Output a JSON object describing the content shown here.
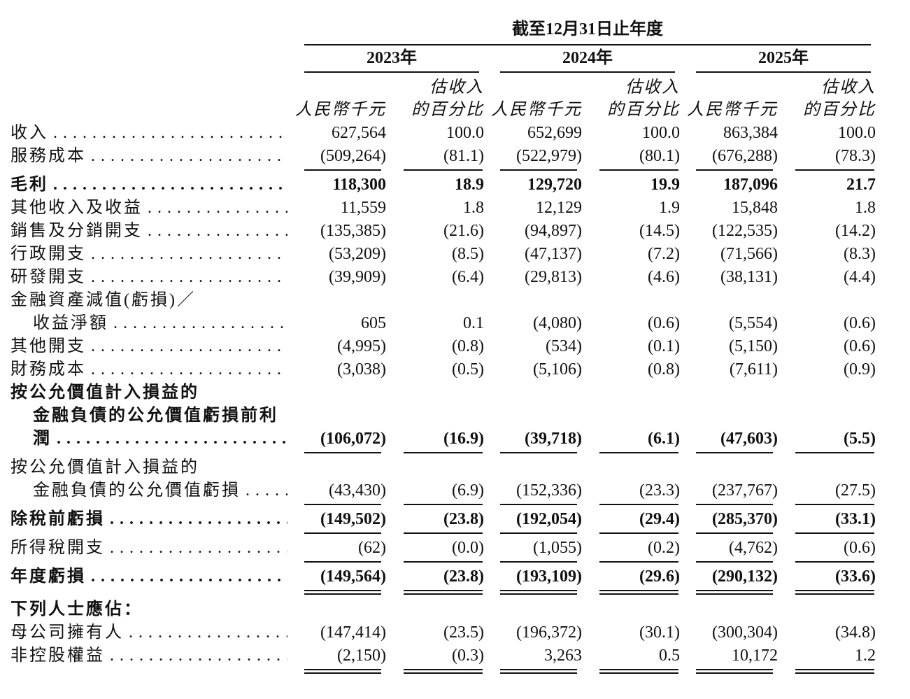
{
  "table": {
    "period_header": "截至12月31日止年度",
    "years": [
      "2023年",
      "2024年",
      "2025年"
    ],
    "column_headers": [
      [
        "人民幣千元"
      ],
      [
        "估收入",
        "的百分比"
      ],
      [
        "人民幣千元"
      ],
      [
        "估收入",
        "的百分比"
      ],
      [
        "人民幣千元"
      ],
      [
        "估收入",
        "的百分比"
      ]
    ],
    "rows": [
      {
        "label": [
          "收入"
        ],
        "values": [
          "627,564",
          "100.0",
          "652,699",
          "100.0",
          "863,384",
          "100.0"
        ]
      },
      {
        "label": [
          "服務成本"
        ],
        "values": [
          "(509,264)",
          "(81.1)",
          "(522,979)",
          "(80.1)",
          "(676,288)",
          "(78.3)"
        ],
        "rule_below": "single"
      },
      {
        "label": [
          "毛利"
        ],
        "bold": true,
        "values": [
          "118,300",
          "18.9",
          "129,720",
          "19.9",
          "187,096",
          "21.7"
        ]
      },
      {
        "label": [
          "其他收入及收益"
        ],
        "values": [
          "11,559",
          "1.8",
          "12,129",
          "1.9",
          "15,848",
          "1.8"
        ]
      },
      {
        "label": [
          "銷售及分銷開支"
        ],
        "values": [
          "(135,385)",
          "(21.6)",
          "(94,897)",
          "(14.5)",
          "(122,535)",
          "(14.2)"
        ]
      },
      {
        "label": [
          "行政開支"
        ],
        "values": [
          "(53,209)",
          "(8.5)",
          "(47,137)",
          "(7.2)",
          "(71,566)",
          "(8.3)"
        ]
      },
      {
        "label": [
          "研發開支"
        ],
        "values": [
          "(39,909)",
          "(6.4)",
          "(29,813)",
          "(4.6)",
          "(38,131)",
          "(4.4)"
        ]
      },
      {
        "label": [
          "金融資產減值(虧損)／",
          "收益淨額"
        ],
        "values": [
          "605",
          "0.1",
          "(4,080)",
          "(0.6)",
          "(5,554)",
          "(0.6)"
        ]
      },
      {
        "label": [
          "其他開支"
        ],
        "values": [
          "(4,995)",
          "(0.8)",
          "(534)",
          "(0.1)",
          "(5,150)",
          "(0.6)"
        ]
      },
      {
        "label": [
          "財務成本"
        ],
        "values": [
          "(3,038)",
          "(0.5)",
          "(5,106)",
          "(0.8)",
          "(7,611)",
          "(0.9)"
        ]
      },
      {
        "label": [
          "按公允價值計入損益的",
          "金融負債的公允價值虧損前利",
          "潤"
        ],
        "bold": true,
        "values": [
          "(106,072)",
          "(16.9)",
          "(39,718)",
          "(6.1)",
          "(47,603)",
          "(5.5)"
        ],
        "rule_below": "single"
      },
      {
        "label": [
          "按公允價值計入損益的",
          "金融負債的公允價值虧損"
        ],
        "values": [
          "(43,430)",
          "(6.9)",
          "(152,336)",
          "(23.3)",
          "(237,767)",
          "(27.5)"
        ],
        "rule_below": "single"
      },
      {
        "label": [
          "除稅前虧損"
        ],
        "bold": true,
        "values": [
          "(149,502)",
          "(23.8)",
          "(192,054)",
          "(29.4)",
          "(285,370)",
          "(33.1)"
        ],
        "rule_below": "single"
      },
      {
        "label": [
          "所得稅開支"
        ],
        "values": [
          "(62)",
          "(0.0)",
          "(1,055)",
          "(0.2)",
          "(4,762)",
          "(0.6)"
        ],
        "rule_below": "single"
      },
      {
        "label": [
          "年度虧損"
        ],
        "bold": true,
        "values": [
          "(149,564)",
          "(23.8)",
          "(193,109)",
          "(29.6)",
          "(290,132)",
          "(33.6)"
        ],
        "rule_below": "double"
      },
      {
        "label": [
          "下列人士應佔："
        ],
        "bold": true
      },
      {
        "label": [
          "母公司擁有人"
        ],
        "values": [
          "(147,414)",
          "(23.5)",
          "(196,372)",
          "(30.1)",
          "(300,304)",
          "(34.8)"
        ]
      },
      {
        "label": [
          "非控股權益"
        ],
        "values": [
          "(2,150)",
          "(0.3)",
          "3,263",
          "0.5",
          "10,172",
          "1.2"
        ],
        "rule_below": "double"
      }
    ]
  }
}
